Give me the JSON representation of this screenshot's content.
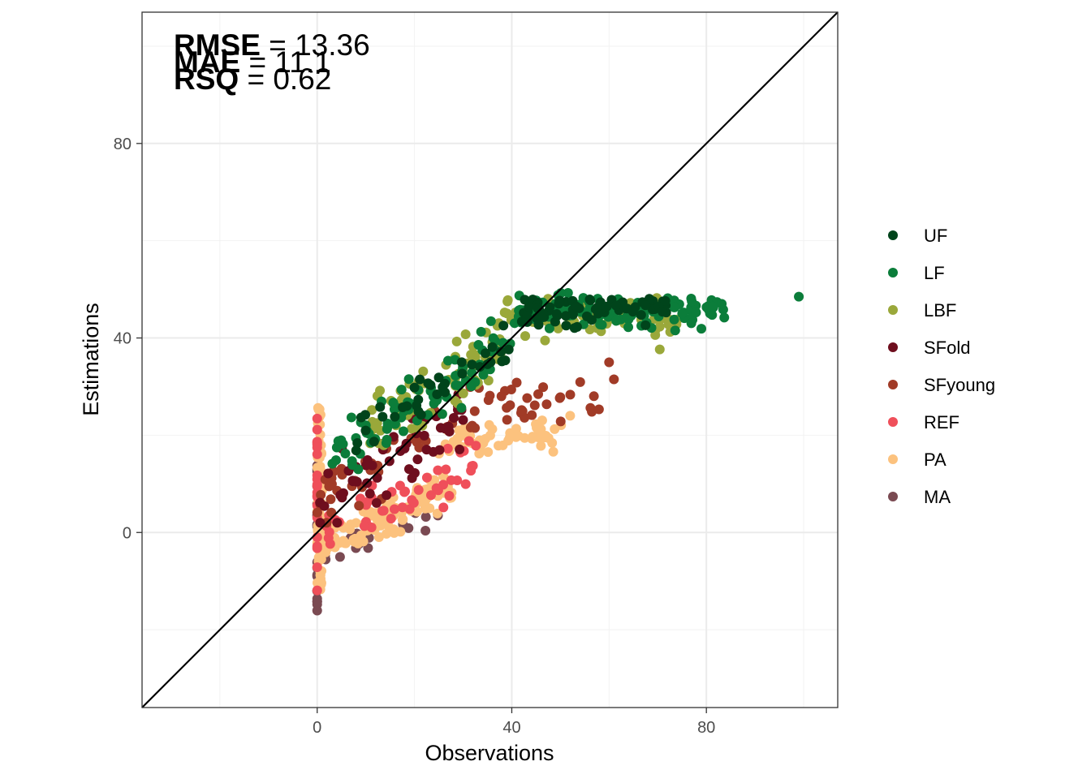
{
  "chart_data": {
    "type": "scatter",
    "title": "",
    "xlabel": "Observations",
    "ylabel": "Estimations",
    "xlim": [
      -36,
      107
    ],
    "ylim": [
      -36,
      107
    ],
    "x_ticks": [
      0,
      40,
      80
    ],
    "y_ticks": [
      0,
      40,
      80
    ],
    "x_tick_labels": [
      "0",
      "40",
      "80"
    ],
    "y_tick_labels": [
      "0",
      "40",
      "80"
    ],
    "grid": true,
    "reference_line": "y = x",
    "legend_position": "right",
    "metrics": [
      {
        "name": "RMSE",
        "sep": " = ",
        "value": "13.36"
      },
      {
        "name": "MAE",
        "sep": " = ",
        "value": "11.1"
      },
      {
        "name": "RSQ",
        "sep": " = ",
        "value": "0.62"
      }
    ],
    "series": [
      {
        "name": "UF",
        "color": "#00441b"
      },
      {
        "name": "LF",
        "color": "#0b7d3a"
      },
      {
        "name": "LBF",
        "color": "#9aa83a"
      },
      {
        "name": "SFold",
        "color": "#6e0e1e"
      },
      {
        "name": "SFyoung",
        "color": "#a13b27"
      },
      {
        "name": "REF",
        "color": "#ef4f5a"
      },
      {
        "name": "PA",
        "color": "#fcc27e"
      },
      {
        "name": "MA",
        "color": "#7a4a52"
      }
    ]
  }
}
